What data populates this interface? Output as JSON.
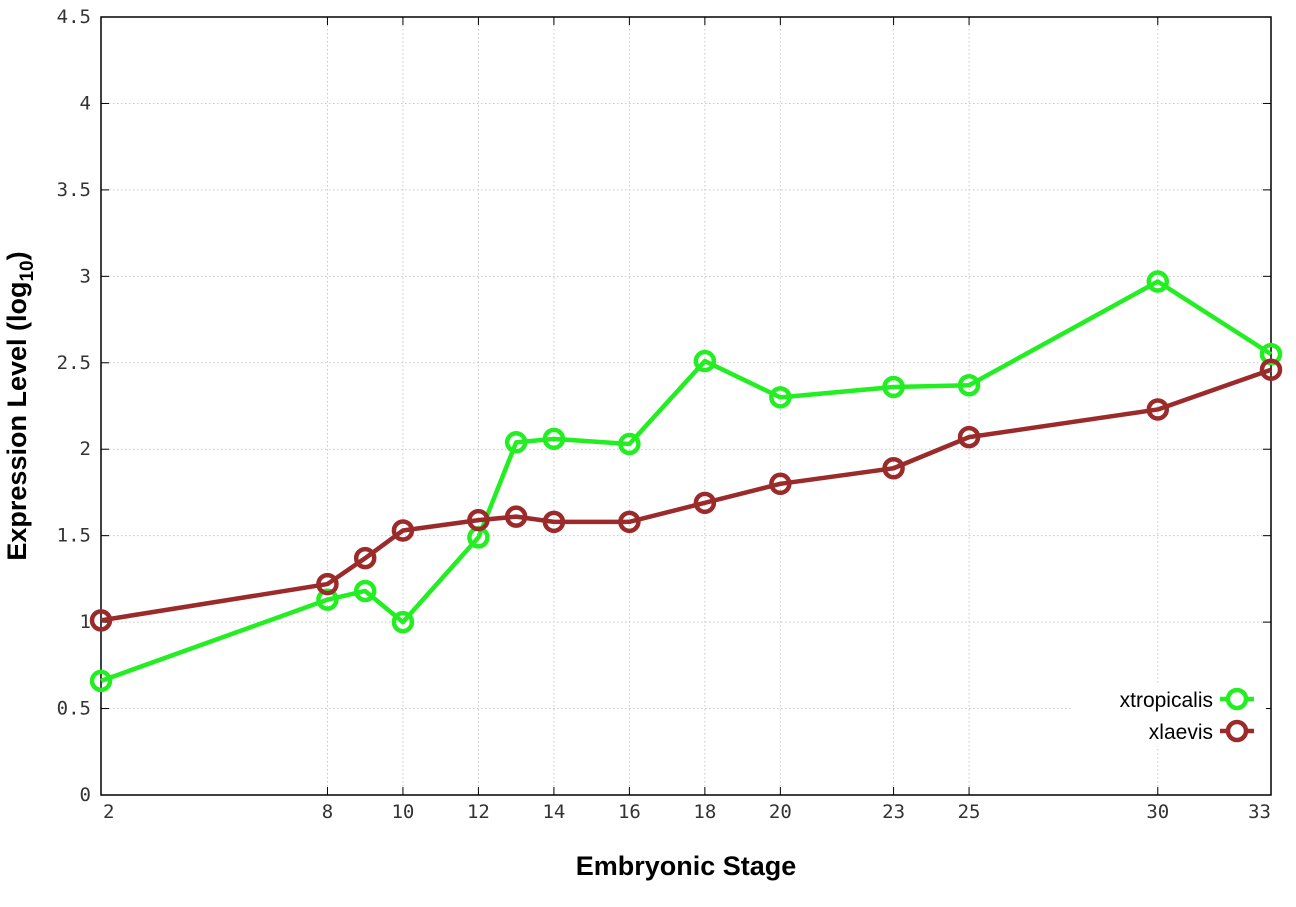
{
  "chart_data": {
    "type": "line",
    "x_tick_labels": [
      "2",
      "8",
      "10",
      "12",
      "14",
      "16",
      "18",
      "20",
      "23",
      "25",
      "30",
      "33"
    ],
    "y_tick_labels": [
      "0",
      "0.5",
      "1",
      "1.5",
      "2",
      "2.5",
      "3",
      "3.5",
      "4",
      "4.5"
    ],
    "xlabel": "Embryonic Stage",
    "ylabel_main": "Expression Level (log",
    "ylabel_sub": "10",
    "ylabel_close": ")",
    "ylim": [
      0,
      4.5
    ],
    "grid": true,
    "legend_position": "bottom-right",
    "x": [
      "2",
      "8",
      "9",
      "10",
      "12",
      "13",
      "14",
      "16",
      "18",
      "20",
      "23",
      "25",
      "30",
      "33"
    ],
    "series": [
      {
        "name": "xtropicalis",
        "color": "#22ee22",
        "values": [
          0.66,
          1.13,
          1.18,
          1.0,
          1.49,
          2.04,
          2.06,
          2.03,
          2.51,
          2.3,
          2.36,
          2.37,
          2.97,
          2.55
        ]
      },
      {
        "name": "xlaevis",
        "color": "#9b2a2a",
        "values": [
          1.01,
          1.22,
          1.37,
          1.53,
          1.59,
          1.61,
          1.58,
          1.58,
          1.69,
          1.8,
          1.89,
          2.07,
          2.23,
          2.46
        ]
      }
    ]
  }
}
